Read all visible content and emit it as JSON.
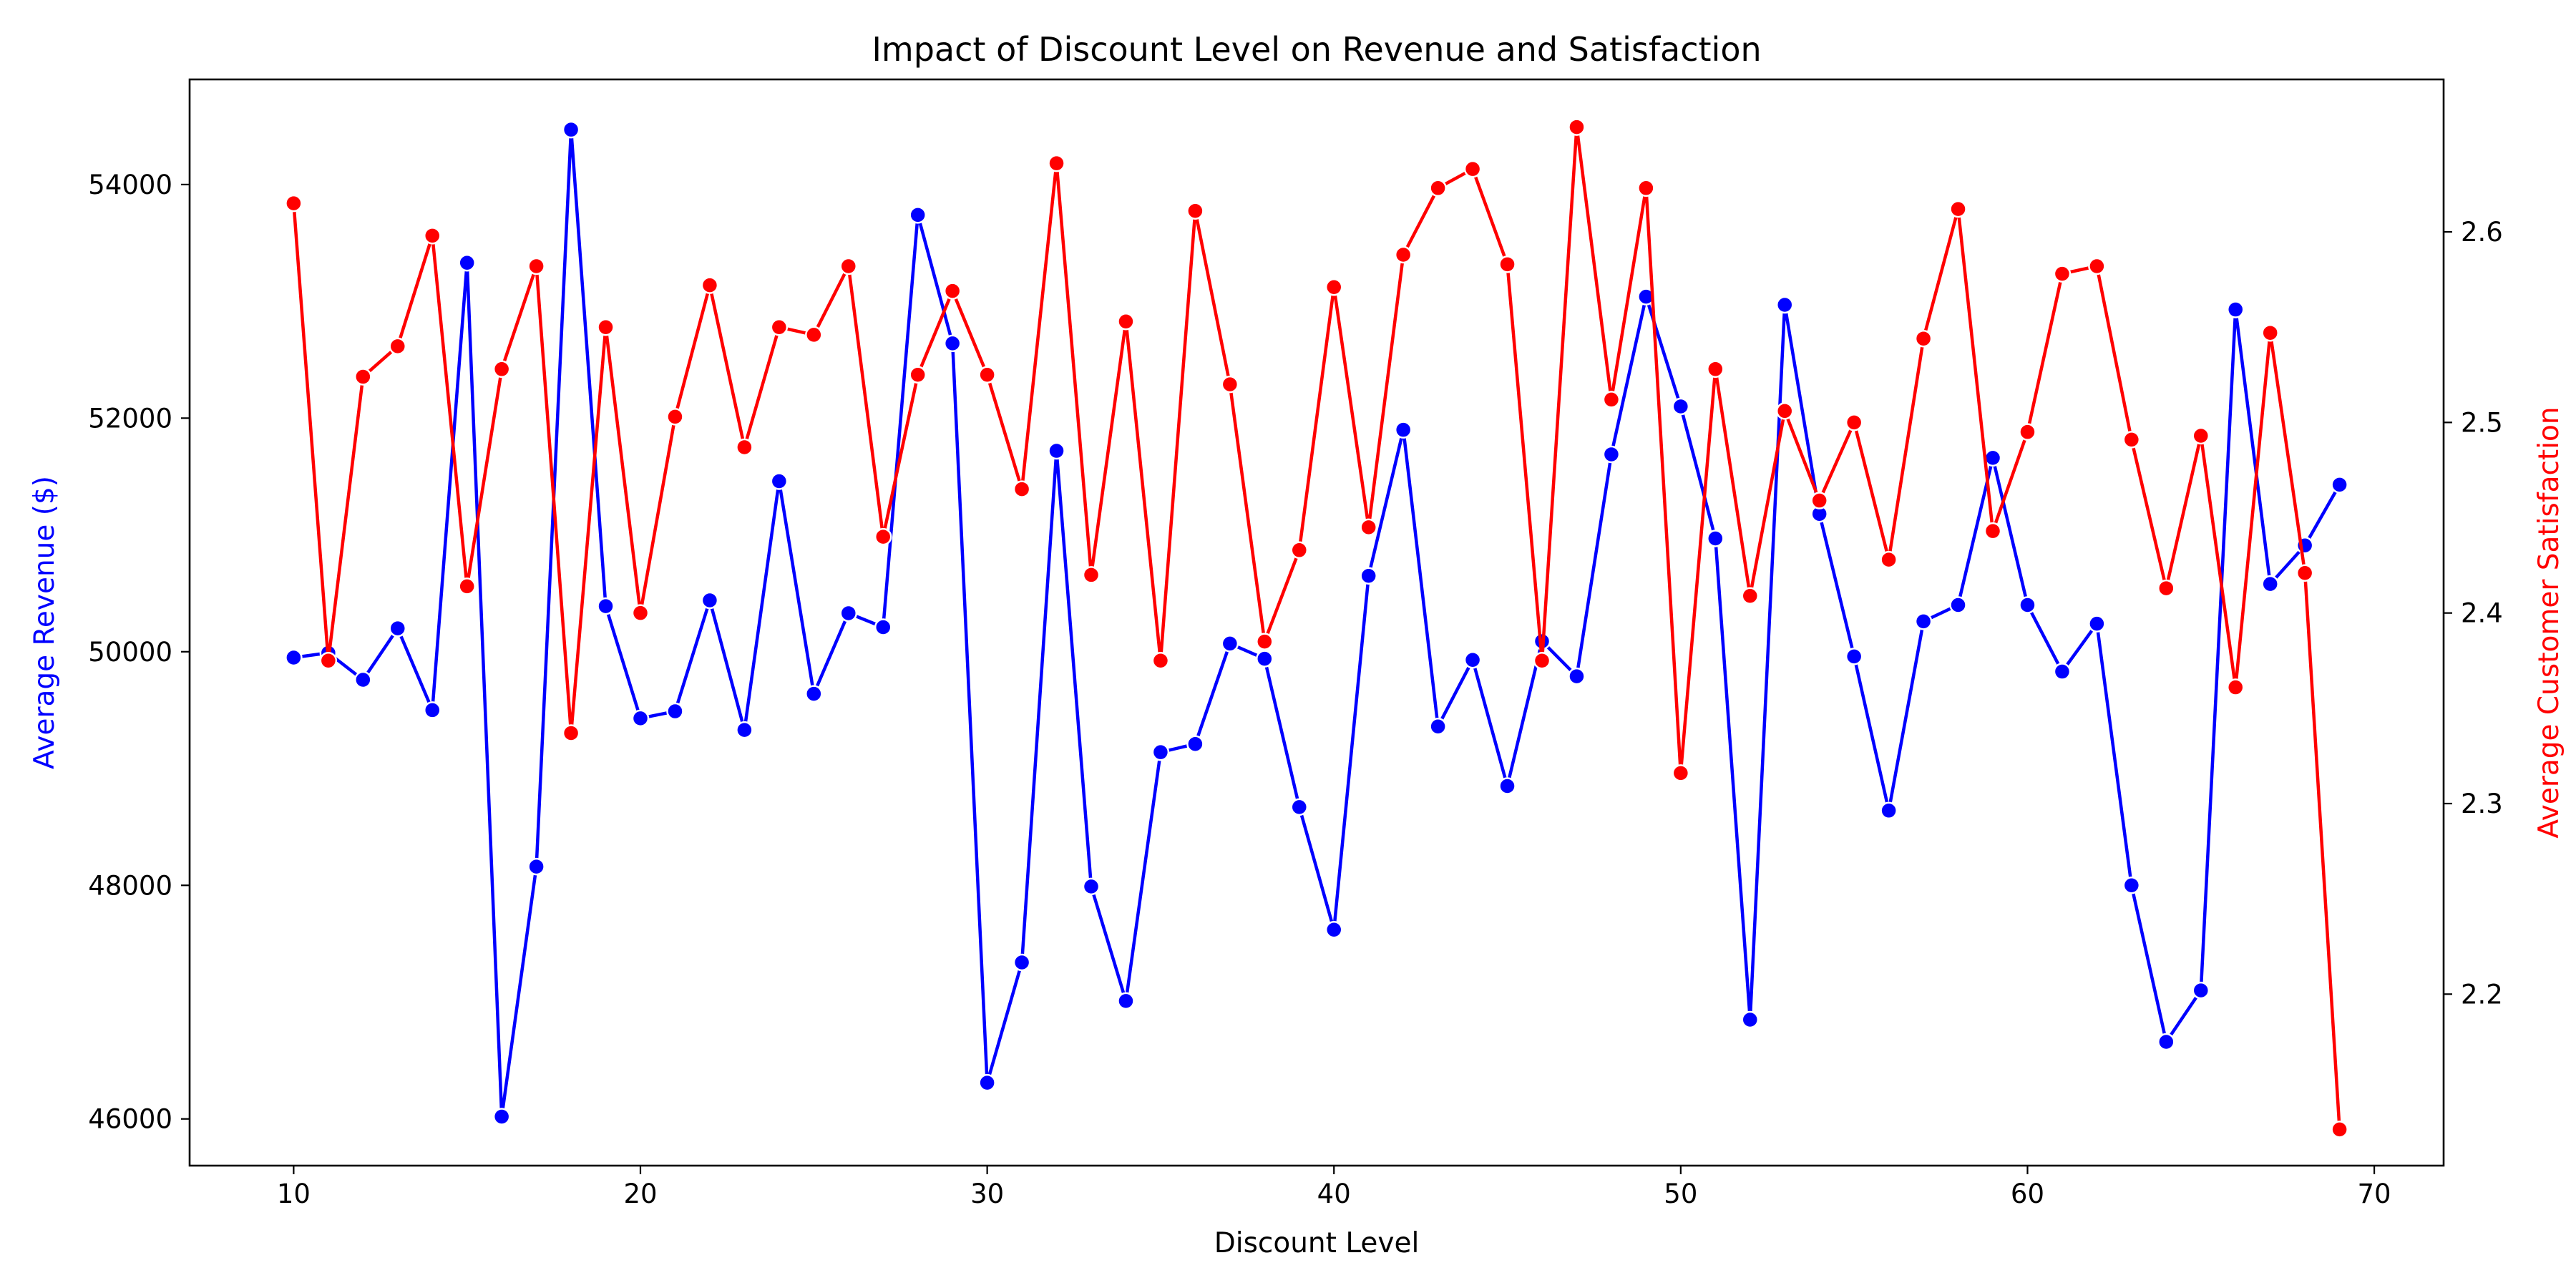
{
  "chart_data": {
    "type": "line",
    "title": "Impact of Discount Level on Revenue and Satisfaction",
    "xlabel": "Discount Level",
    "ylabel_left": "Average Revenue ($)",
    "ylabel_right": "Average Customer Satisfaction",
    "xlim": [
      7,
      72
    ],
    "ylim_left": [
      45600,
      54900
    ],
    "ylim_right": [
      2.11,
      2.68
    ],
    "xticks": [
      10,
      20,
      30,
      40,
      50,
      60,
      70
    ],
    "yticks_left": [
      46000,
      48000,
      50000,
      52000,
      54000
    ],
    "yticks_right": [
      2.2,
      2.3,
      2.4,
      2.5,
      2.6
    ],
    "grid": false,
    "x": [
      10,
      11,
      12,
      13,
      14,
      15,
      16,
      17,
      18,
      19,
      20,
      21,
      22,
      23,
      24,
      25,
      26,
      27,
      28,
      29,
      30,
      31,
      32,
      33,
      34,
      35,
      36,
      37,
      38,
      39,
      40,
      41,
      42,
      43,
      44,
      45,
      46,
      47,
      48,
      49,
      50,
      51,
      52,
      53,
      54,
      55,
      56,
      57,
      58,
      59,
      60,
      61,
      62,
      63,
      64,
      65,
      66,
      67,
      68,
      69
    ],
    "series": [
      {
        "name": "Average Revenue ($)",
        "axis": "left",
        "color": "#0000ff",
        "values": [
          49950,
          49990,
          49760,
          50200,
          49500,
          53330,
          46020,
          48160,
          54470,
          50390,
          49430,
          49490,
          50440,
          49330,
          51460,
          49640,
          50330,
          50210,
          53740,
          52640,
          46310,
          47340,
          51720,
          47990,
          47010,
          49140,
          49210,
          50070,
          49940,
          48670,
          47620,
          50650,
          51900,
          49360,
          49930,
          48850,
          50090,
          49790,
          51690,
          53040,
          52100,
          50970,
          46850,
          52970,
          51180,
          49960,
          48640,
          50260,
          50400,
          51660,
          50400,
          49830,
          50240,
          48000,
          46660,
          47100,
          52930,
          50580,
          50910,
          51430
        ]
      },
      {
        "name": "Average Customer Satisfaction",
        "axis": "right",
        "color": "#ff0000",
        "values": [
          2.615,
          2.375,
          2.524,
          2.54,
          2.598,
          2.414,
          2.528,
          2.582,
          2.337,
          2.55,
          2.4,
          2.503,
          2.572,
          2.487,
          2.55,
          2.546,
          2.582,
          2.44,
          2.525,
          2.569,
          2.525,
          2.465,
          2.636,
          2.42,
          2.553,
          2.375,
          2.611,
          2.52,
          2.385,
          2.433,
          2.571,
          2.445,
          2.588,
          2.623,
          2.633,
          2.583,
          2.375,
          2.655,
          2.512,
          2.623,
          2.316,
          2.528,
          2.409,
          2.506,
          2.459,
          2.5,
          2.428,
          2.544,
          2.612,
          2.443,
          2.495,
          2.578,
          2.582,
          2.491,
          2.413,
          2.493,
          2.361,
          2.547,
          2.421,
          2.129
        ]
      }
    ]
  }
}
